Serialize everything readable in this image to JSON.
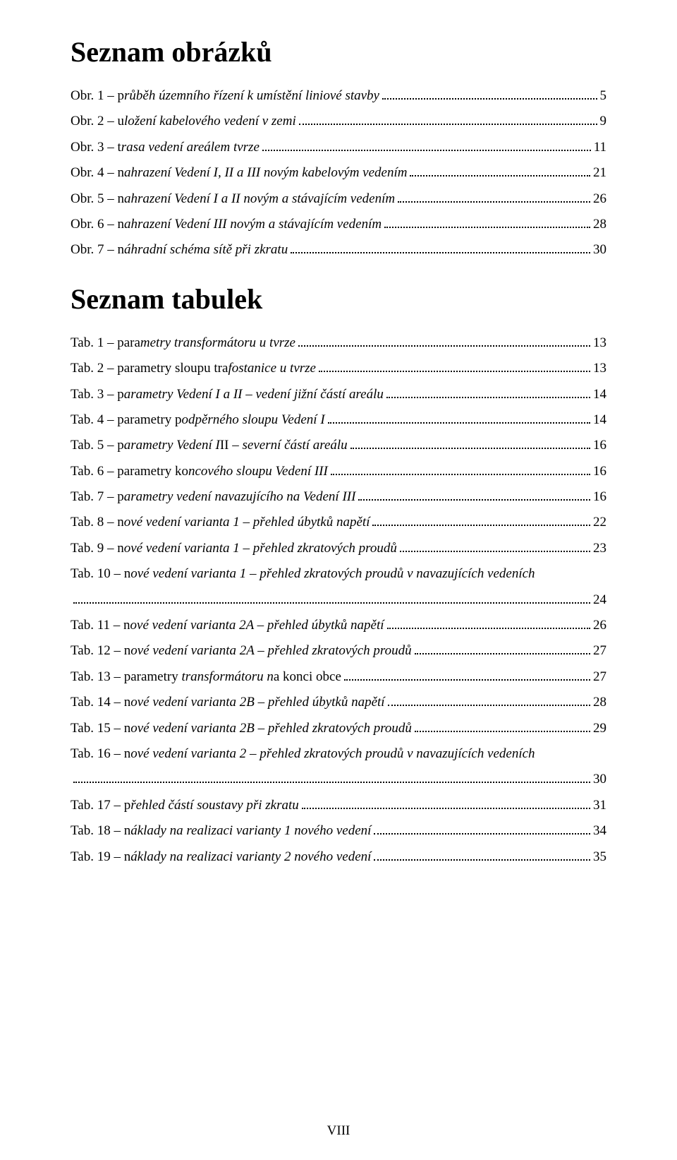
{
  "heading1": "Seznam obrázků",
  "heading2": "Seznam tabulek",
  "footer": "VIII",
  "figures": [
    {
      "prefix": "Obr. 1 – p",
      "italic": "růběh územního řízení k umístění liniové stavby",
      "page": "5"
    },
    {
      "prefix": "Obr. 2 – u",
      "italic": "ložení kabelového vedení v zemi",
      "page": "9"
    },
    {
      "prefix": "Obr. 3 – t",
      "italic": "rasa vedení areálem tvrze",
      "page": "11"
    },
    {
      "prefix": "Obr. 4 – n",
      "italic": "ahrazení Vedení I, II a III novým kabelovým vedením",
      "page": "21"
    },
    {
      "prefix": "Obr. 5 – n",
      "italic": "ahrazení Vedení I a II novým a stávajícím vedením",
      "page": "26"
    },
    {
      "prefix": "Obr. 6 – n",
      "italic": "ahrazení Vedení III novým a stávajícím vedením",
      "page": "28"
    },
    {
      "prefix": "Obr. 7 – n",
      "italic": "áhradní schéma sítě při zkratu",
      "page": "30"
    }
  ],
  "tables": [
    {
      "prefix": "Tab. 1 – para",
      "italic": "metry transformátoru u tvrze",
      "page": "13"
    },
    {
      "prefix": "Tab. 2 – parametry sloupu tra",
      "italic": "fostanice u tvrze",
      "page": "13"
    },
    {
      "prefix": "Tab. 3 – p",
      "italic": "arametry Vedení I a II – vedení jižní částí areálu",
      "page": "14"
    },
    {
      "prefix": "Tab. 4 – parametry p",
      "italic": "odpěrného sloupu Vedení I",
      "page": "14"
    },
    {
      "prefix": "Tab. 5 – p",
      "italic": "arametry Vedení I",
      "suffix": "II – ",
      "italic2": "severní částí areálu",
      "page": "16"
    },
    {
      "prefix": "Tab. 6 – parametry ko",
      "italic": "ncového sloupu Vedení III",
      "page": "16"
    },
    {
      "prefix": "Tab. 7 – p",
      "italic": "arametry vedení navazujícího na Vedení III",
      "page": "16"
    },
    {
      "prefix": "Tab. 8 – n",
      "italic": "ové vedení varianta 1 – přehled úbytků napětí",
      "page": "22"
    },
    {
      "prefix": "Tab. 9 – n",
      "italic": "ové vedení varianta 1 – přehled zkratových proudů",
      "page": "23"
    },
    {
      "prefix": "Tab. 10 – n",
      "italic": "ové vedení varianta 1 – přehled zkratových proudů v navazujících vedeních",
      "page": "24",
      "wrap": true
    },
    {
      "prefix": "Tab. 11 – n",
      "italic": "ové vedení varianta 2A – přehled úbytků napětí",
      "page": "26"
    },
    {
      "prefix": "Tab. 12 – n",
      "italic": "ové vedení varianta 2A – přehled zkratových proudů",
      "page": "27"
    },
    {
      "prefix": "Tab. 13 – parametry ",
      "italic": "transformátoru n",
      "suffix": "a konci obce",
      "page": "27"
    },
    {
      "prefix": "Tab. 14 – n",
      "italic": "ové vedení varianta 2B – přehled úbytků napětí",
      "page": "28"
    },
    {
      "prefix": "Tab. 15 – n",
      "italic": "ové vedení varianta 2B – přehled zkratových proudů",
      "page": "29"
    },
    {
      "prefix": "Tab. 16 – n",
      "italic": "ové vedení varianta 2 – přehled zkratových proudů v navazujících vedeních",
      "page": "30",
      "wrap": true
    },
    {
      "prefix": "Tab. 17 – p",
      "italic": "řehled částí soustavy při zkratu",
      "page": "31"
    },
    {
      "prefix": "Tab. 18 – n",
      "italic": "áklady na realizaci varianty 1 nového vedení",
      "page": "34"
    },
    {
      "prefix": "Tab. 19 – n",
      "italic": "áklady na realizaci varianty 2 nového vedení",
      "page": "35"
    }
  ]
}
